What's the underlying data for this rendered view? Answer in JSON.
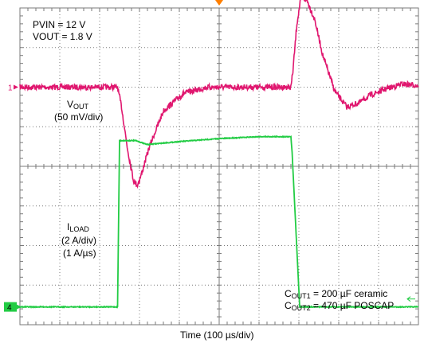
{
  "chart_data": {
    "type": "line",
    "title": "",
    "xlabel": "Time (100 µs/div)",
    "grid": true,
    "x_unit": "div",
    "xlim": [
      0,
      10
    ],
    "channels": [
      {
        "id": "1",
        "marker": "1",
        "color": "#e0176f",
        "label": "V",
        "label_sub": "OUT",
        "scale": "(50 mV/div)",
        "offset_div": 6.0,
        "points_x_div": [
          0,
          2.45,
          2.55,
          2.7,
          2.85,
          2.95,
          3.05,
          3.25,
          3.6,
          4.1,
          4.7,
          5.3,
          6.0,
          6.8,
          6.85,
          6.95,
          7.05,
          7.2,
          7.4,
          7.6,
          7.9,
          8.2,
          8.5,
          8.8,
          9.2,
          9.6,
          10
        ],
        "points_mv": [
          0,
          0,
          -25,
          -78,
          -118,
          -124,
          -110,
          -75,
          -30,
          -8,
          0,
          0,
          0,
          0,
          20,
          80,
          112,
          110,
          85,
          40,
          -5,
          -25,
          -20,
          -10,
          -2,
          4,
          2
        ]
      },
      {
        "id": "4",
        "marker": "4",
        "color": "#22cc44",
        "label": "I",
        "label_sub": "LOAD",
        "scale": "(2 A/div)",
        "slew": "(1 A/µs)",
        "offset_div": 0.45,
        "points_x_div": [
          0,
          2.45,
          2.5,
          2.9,
          3.2,
          4.0,
          5.0,
          6.0,
          6.8,
          6.83,
          7.02,
          10
        ],
        "points_a": [
          0,
          0,
          8.4,
          8.4,
          8.2,
          8.35,
          8.5,
          8.6,
          8.6,
          7.8,
          0,
          0
        ]
      }
    ]
  },
  "annotations": {
    "pvin": "PVIN = 12 V",
    "vout": "VOUT = 1.8  V",
    "cout1_c": "C",
    "cout1_sub": "OUT1",
    "cout1_rest": " = 200 µF ceramic",
    "cout2_c": "C",
    "cout2_sub": "OUT2",
    "cout2_rest": " = 470 µF POSCAP"
  },
  "colors": {
    "grid": "#7a7a7a",
    "trigger": "#ff7f00",
    "ch1": "#e0176f",
    "ch4": "#22cc44"
  }
}
